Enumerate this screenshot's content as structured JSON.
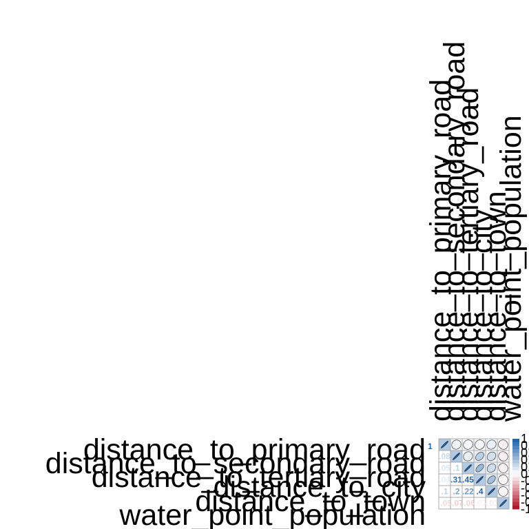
{
  "chart_data": {
    "type": "heatmap",
    "method": "mixed correlogram (ellipse upper, number lower)",
    "variables": [
      "distance_to_primary_road",
      "distance_to_secondary_road",
      "distance_to_tertiary_road",
      "distance_to_city",
      "distance_to_town",
      "water_point_population"
    ],
    "matrix": [
      [
        1.0,
        0.08,
        0.05,
        0.04,
        0.1,
        -0.05
      ],
      [
        0.08,
        1.0,
        0.1,
        0.31,
        0.2,
        -0.07
      ],
      [
        0.05,
        0.1,
        1.0,
        0.45,
        0.22,
        -0.06
      ],
      [
        0.04,
        0.31,
        0.45,
        1.0,
        0.4,
        -0.02
      ],
      [
        0.1,
        0.2,
        0.22,
        0.4,
        1.0,
        -0.03
      ],
      [
        -0.05,
        -0.07,
        -0.06,
        -0.02,
        -0.03,
        1.0
      ]
    ],
    "diag_label": "1",
    "legend_ticks": [
      "1",
      "0.8",
      "0.6",
      "0.4",
      "0.2",
      "0",
      "-0.2",
      "-0.4",
      "-0.6",
      "-0.8",
      "-1"
    ],
    "color_scale": {
      "negative": "#b2182b",
      "neutral": "#ffffff",
      "positive": "#2166ac"
    },
    "grid": true
  }
}
